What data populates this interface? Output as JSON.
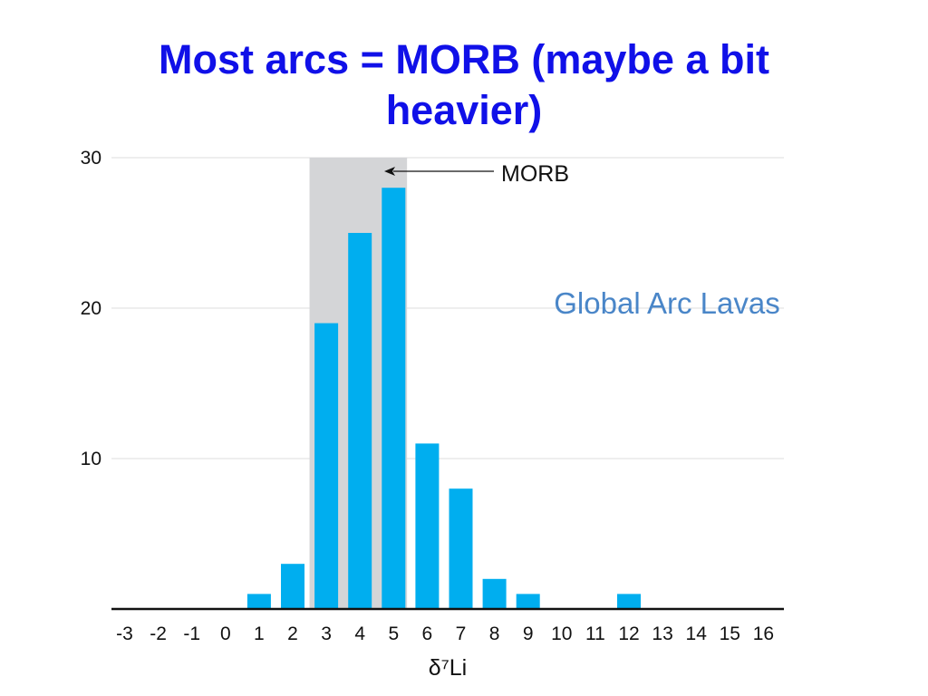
{
  "slide": {
    "title_line1": "Most arcs = MORB (maybe a bit",
    "title_line2": "heavier)"
  },
  "chart_data": {
    "type": "bar",
    "subtitle": "Global Arc Lavas",
    "xlabel": "δ⁷Li",
    "ylabel": "",
    "categories": [
      "-3",
      "-2",
      "-1",
      "0",
      "1",
      "2",
      "3",
      "4",
      "5",
      "6",
      "7",
      "8",
      "9",
      "10",
      "11",
      "12",
      "13",
      "14",
      "15",
      "16"
    ],
    "values": [
      0,
      0,
      0,
      0,
      1,
      3,
      19,
      25,
      28,
      11,
      8,
      2,
      1,
      0,
      0,
      1,
      0,
      0,
      0,
      0
    ],
    "ylim": [
      0,
      30
    ],
    "yticks": [
      10,
      20,
      30
    ],
    "grid": true,
    "bar_color": "#00aeef",
    "band": {
      "from": 2.5,
      "to": 5.4,
      "label": "MORB",
      "color": "#d4d5d7"
    }
  }
}
